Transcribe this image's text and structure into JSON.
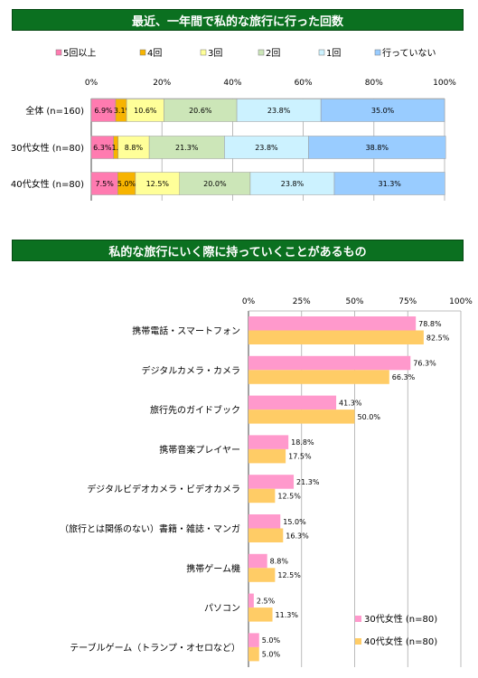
{
  "chart_data": [
    {
      "type": "bar",
      "orientation": "horizontal",
      "stacked": true,
      "title": "最近、一年間で私的な旅行に行った回数",
      "categories": [
        "全体 (n=160)",
        "30代女性 (n=80)",
        "40代女性 (n=80)"
      ],
      "series": [
        {
          "name": "5回以上",
          "color": "#ff7bb0",
          "values": [
            6.9,
            6.3,
            7.5
          ],
          "labels": [
            "6.9%",
            "6.3%",
            "7.5%"
          ]
        },
        {
          "name": "4回",
          "color": "#f7b400",
          "values": [
            3.1,
            1.3,
            5.0
          ],
          "labels": [
            "3.1%",
            "1.3%",
            "5.0%"
          ]
        },
        {
          "name": "3回",
          "color": "#ffff99",
          "values": [
            10.6,
            8.8,
            12.5
          ],
          "labels": [
            "10.6%",
            "8.8%",
            "12.5%"
          ]
        },
        {
          "name": "2回",
          "color": "#cce6b8",
          "values": [
            20.6,
            21.3,
            20.0
          ],
          "labels": [
            "20.6%",
            "21.3%",
            "20.0%"
          ]
        },
        {
          "name": "1回",
          "color": "#ccf2ff",
          "values": [
            23.8,
            23.8,
            23.8
          ],
          "labels": [
            "23.8%",
            "23.8%",
            "23.8%"
          ]
        },
        {
          "name": "行っていない",
          "color": "#99ccff",
          "values": [
            35.0,
            38.8,
            31.3
          ],
          "labels": [
            "35.0%",
            "38.8%",
            "31.3%"
          ]
        }
      ],
      "xlim": [
        0,
        100
      ],
      "ticks": [
        "0%",
        "20%",
        "40%",
        "60%",
        "80%",
        "100%"
      ],
      "grid": true,
      "legend": "top"
    },
    {
      "type": "bar",
      "orientation": "horizontal",
      "title": "私的な旅行にいく際に持っていくことがあるもの",
      "categories": [
        "携帯電話・スマートフォン",
        "デジタルカメラ・カメラ",
        "旅行先のガイドブック",
        "携帯音楽プレイヤー",
        "デジタルビデオカメラ・ビデオカメラ",
        "（旅行とは関係のない）書籍・雑誌・マンガ",
        "携帯ゲーム機",
        "パソコン",
        "テーブルゲーム（トランプ・オセロなど）"
      ],
      "series": [
        {
          "name": "30代女性 (n=80)",
          "color": "#ff99cc",
          "values": [
            78.8,
            76.3,
            41.3,
            18.8,
            21.3,
            15.0,
            8.8,
            2.5,
            5.0
          ],
          "labels": [
            "78.8%",
            "76.3%",
            "41.3%",
            "18.8%",
            "21.3%",
            "15.0%",
            "8.8%",
            "2.5%",
            "5.0%"
          ]
        },
        {
          "name": "40代女性 (n=80)",
          "color": "#ffcc66",
          "values": [
            82.5,
            66.3,
            50.0,
            17.5,
            12.5,
            16.3,
            12.5,
            11.3,
            5.0
          ],
          "labels": [
            "82.5%",
            "66.3%",
            "50.0%",
            "17.5%",
            "12.5%",
            "16.3%",
            "12.5%",
            "11.3%",
            "5.0%"
          ]
        }
      ],
      "xlim": [
        0,
        100
      ],
      "ticks": [
        "0%",
        "25%",
        "50%",
        "75%",
        "100%"
      ],
      "grid": true,
      "legend": "bottom-right"
    }
  ]
}
